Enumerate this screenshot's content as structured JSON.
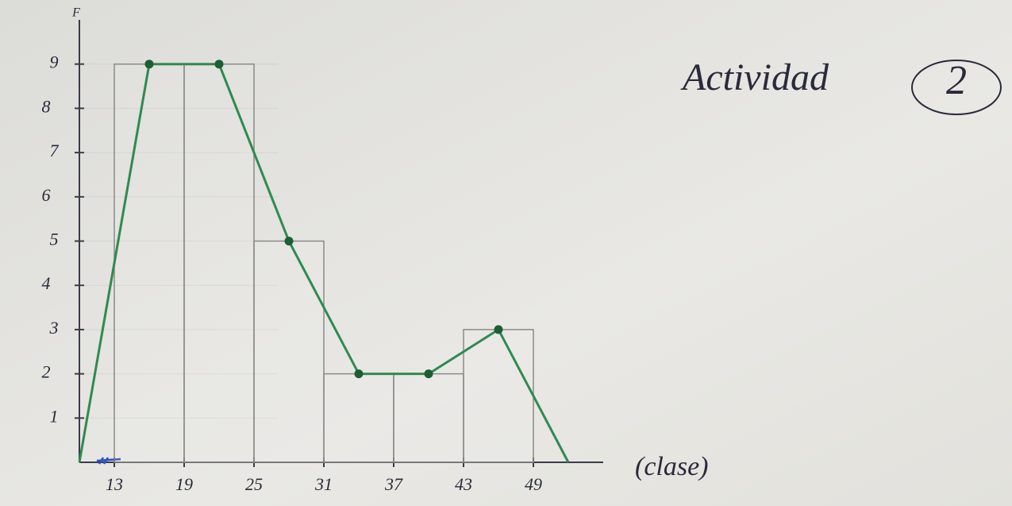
{
  "chart_data": {
    "type": "histogram",
    "bins": [
      13,
      19,
      25,
      31,
      37,
      43,
      49
    ],
    "counts": [
      9,
      9,
      5,
      2,
      2,
      3
    ],
    "bar_color": "#8a8a88",
    "polygon": {
      "x": [
        10,
        16,
        22,
        28,
        34,
        40,
        46,
        52
      ],
      "y": [
        0,
        9,
        9,
        5,
        2,
        2,
        3,
        0
      ],
      "color": "#2f8a50",
      "marker_color": "#1d5e34"
    },
    "xlim": [
      10,
      55
    ],
    "ylim": [
      0,
      10
    ],
    "xticks": [
      13,
      19,
      25,
      31,
      37,
      43,
      49
    ],
    "yticks": [
      1,
      2,
      3,
      4,
      5,
      6,
      7,
      8,
      9
    ],
    "xlabel": "(clase)",
    "ylabel": "F",
    "annotation": {
      "text": "Actividad",
      "number": "2"
    }
  }
}
